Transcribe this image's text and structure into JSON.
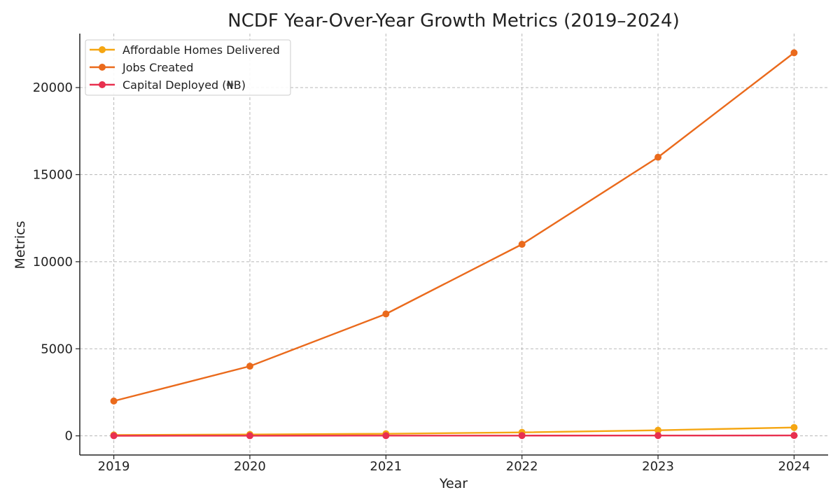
{
  "chart_data": {
    "type": "line",
    "title": "NCDF Year-Over-Year Growth Metrics (2019–2024)",
    "xlabel": "Year",
    "ylabel": "Metrics",
    "x": [
      2019,
      2020,
      2021,
      2022,
      2023,
      2024
    ],
    "x_ticks": [
      "2019",
      "2020",
      "2021",
      "2022",
      "2023",
      "2024"
    ],
    "y_ticks": [
      0,
      5000,
      10000,
      15000,
      20000
    ],
    "y_tick_labels": [
      "0",
      "5000",
      "10000",
      "15000",
      "20000"
    ],
    "ylim": [
      -1100,
      23100
    ],
    "xlim": [
      2018.75,
      2024.25
    ],
    "grid": true,
    "legend_position": "top-left",
    "series": [
      {
        "name": "Affordable Homes Delivered",
        "color": "#f5a612",
        "values": [
          50,
          80,
          120,
          200,
          320,
          480
        ]
      },
      {
        "name": "Jobs Created",
        "color": "#ea6a1c",
        "values": [
          2000,
          4000,
          7000,
          11000,
          16000,
          22000
        ]
      },
      {
        "name": "Capital Deployed (₦B)",
        "color": "#e8304f",
        "values": [
          5,
          8,
          12,
          15,
          18,
          22
        ]
      }
    ]
  }
}
